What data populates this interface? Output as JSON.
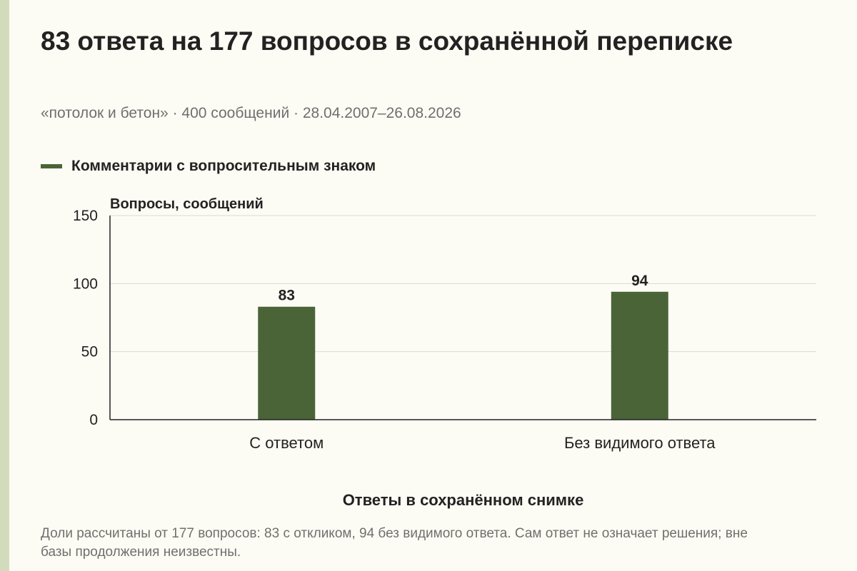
{
  "title": "83 ответа на 177 вопросов в сохранённой переписке",
  "subtitle": "«потолок и бетон» · 400 сообщений · 28.04.2007–26.08.2026",
  "note": "Доли рассчитаны от 177 вопросов: 83 с откликом, 94 без видимого ответа. Сам ответ не означает решения; вне базы продолжения неизвестны.",
  "colors": {
    "bar": "#4a6438",
    "accent_stripe": "#d2dcbd",
    "background": "#fdfcf4",
    "grid": "#d7d7d7",
    "axis": "#222222"
  },
  "chart_data": {
    "type": "bar",
    "categories": [
      "С ответом",
      "Без видимого ответа"
    ],
    "series": [
      {
        "name": "Комментарии с вопросительным знаком",
        "values": [
          83,
          94
        ]
      }
    ],
    "value_labels": [
      "83",
      "94"
    ],
    "xlabel": "Ответы в сохранённом снимке",
    "ylabel": "Вопросы, сообщений",
    "ylim": [
      0,
      150
    ],
    "yticks": [
      0,
      50,
      100,
      150
    ],
    "ytick_labels": [
      "0",
      "50",
      "100",
      "150"
    ],
    "grid": true,
    "legend_position": "top-left"
  }
}
